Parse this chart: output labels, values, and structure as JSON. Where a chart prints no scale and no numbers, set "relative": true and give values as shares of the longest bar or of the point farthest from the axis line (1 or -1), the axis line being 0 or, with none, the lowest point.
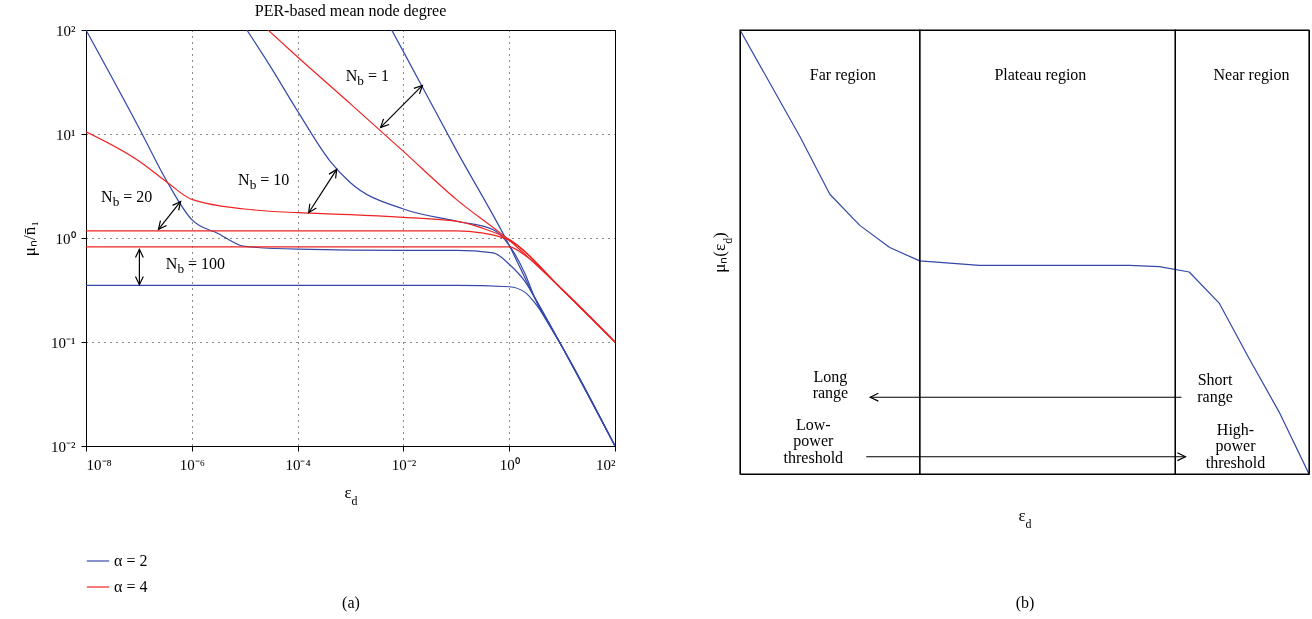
{
  "chart_data": [
    {
      "type": "line",
      "title": "PER-based mean node degree",
      "xlabel": "ε$_{d}$",
      "ylabel": "μₙ/n̄₁",
      "log": "xy",
      "grid": true,
      "legend": "bottom",
      "xlim": [
        1e-08,
        100
      ],
      "ylim": [
        0.01,
        100
      ],
      "xticks": [
        {
          "value": 1e-08,
          "label": "10⁻⁸"
        },
        {
          "value": 1e-06,
          "label": "10⁻⁶"
        },
        {
          "value": 0.0001,
          "label": "10⁻⁴"
        },
        {
          "value": 0.01,
          "label": "10⁻²"
        },
        {
          "value": 1,
          "label": "10⁰"
        },
        {
          "value": 100,
          "label": "10²"
        }
      ],
      "yticks": [
        {
          "value": 0.01,
          "label": "10⁻²"
        },
        {
          "value": 0.1,
          "label": "10⁻¹"
        },
        {
          "value": 1,
          "label": "10⁰"
        },
        {
          "value": 10,
          "label": "10¹"
        },
        {
          "value": 100,
          "label": "10²"
        }
      ],
      "series": [
        {
          "name": "α = 2",
          "color": "#3448a8",
          "x": [
            0.006,
            0.01,
            0.1,
            1,
            3,
            10,
            100
          ],
          "values": [
            100,
            62,
            7,
            0.85,
            0.27,
            0.09,
            0.01
          ]
        },
        {
          "color": "#3448a8",
          "x": [
            1.1e-05,
            3.2e-05,
            0.0001,
            0.00041,
            0.001,
            0.01,
            0.1,
            0.5,
            1,
            2,
            3,
            10,
            100
          ],
          "values": [
            100,
            43,
            16.6,
            5.5,
            3.4,
            1.9,
            1.45,
            1.2,
            0.85,
            0.45,
            0.27,
            0.09,
            0.01
          ]
        },
        {
          "color": "#3448a8",
          "x": [
            1e-08,
            1e-07,
            3.5e-07,
            1e-06,
            3.2e-06,
            1e-05,
            0.0001,
            0.01,
            0.1,
            0.5,
            1,
            2,
            3,
            10,
            100
          ],
          "values": [
            100,
            11.5,
            3.4,
            1.5,
            1.1,
            0.83,
            0.78,
            0.76,
            0.76,
            0.72,
            0.56,
            0.38,
            0.27,
            0.09,
            0.01
          ]
        },
        {
          "color": "#3448a8",
          "x": [
            1e-08,
            0.1,
            1,
            2,
            3,
            10,
            100
          ],
          "values": [
            0.35,
            0.35,
            0.34,
            0.3,
            0.24,
            0.09,
            0.01
          ]
        },
        {
          "name": "α = 4",
          "color": "#ee2222",
          "x": [
            2.75e-05,
            0.0001,
            0.001,
            0.01,
            0.1,
            1,
            10,
            100
          ],
          "values": [
            100,
            55,
            19.5,
            6.8,
            2.35,
            0.95,
            0.32,
            0.1
          ]
        },
        {
          "color": "#ee2222",
          "x": [
            1e-08,
            1e-07,
            3.5e-07,
            1e-06,
            1e-05,
            0.0001,
            0.001,
            0.01,
            0.1,
            0.3,
            1,
            10,
            100
          ],
          "values": [
            10.5,
            5.5,
            3.4,
            2.35,
            1.9,
            1.75,
            1.68,
            1.58,
            1.45,
            1.25,
            0.97,
            0.32,
            0.1
          ]
        },
        {
          "color": "#ee2222",
          "x": [
            1e-08,
            0.1,
            0.3,
            1,
            10,
            100
          ],
          "values": [
            1.17,
            1.17,
            1.12,
            0.95,
            0.32,
            0.1
          ]
        },
        {
          "color": "#ee2222",
          "x": [
            1e-08,
            1,
            2,
            10,
            100
          ],
          "values": [
            0.82,
            0.82,
            0.68,
            0.32,
            0.1
          ]
        }
      ],
      "annotations": [
        "N$_{b}$ = 1",
        "N$_{b}$ = 10",
        "N$_{b}$ = 20",
        "N$_{b}$ = 100",
        "(a)"
      ]
    },
    {
      "type": "line",
      "xlabel": "ε$_{d}$",
      "ylabel": "μₙ(ε$_{d}$)",
      "relative": true,
      "categories": [
        null,
        null,
        null,
        null,
        null,
        null,
        null,
        null,
        null,
        null,
        null,
        null,
        null,
        null,
        null,
        null,
        null,
        null,
        null,
        null
      ],
      "series": [
        {
          "color": "#3448a8",
          "values": [
            1,
            0.88,
            0.76,
            0.63,
            0.56,
            0.51,
            0.48,
            0.475,
            0.47,
            0.47,
            0.47,
            0.47,
            0.47,
            0.47,
            0.467,
            0.455,
            0.385,
            0.26,
            0.14,
            0
          ]
        }
      ],
      "annotations": [
        "Far region",
        "Plateau region",
        "Near region",
        "Long range",
        "Short range",
        "Low-power threshold",
        "High-power threshold",
        "(b)"
      ]
    }
  ]
}
